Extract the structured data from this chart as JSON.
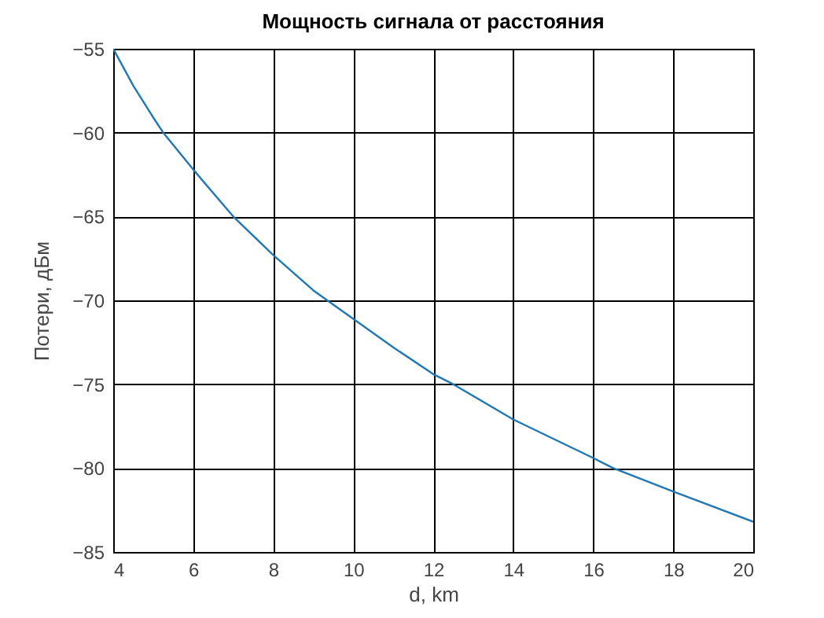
{
  "chart_data": {
    "type": "line",
    "title": "Мощность сигнала от расстояния",
    "xlabel": "d, km",
    "ylabel": "Потери, дБм",
    "x": [
      4,
      4.5,
      5,
      5.25,
      6,
      7,
      8,
      9,
      9.35,
      10,
      11,
      12,
      12.5,
      14,
      16,
      16.5,
      18,
      20
    ],
    "series": [
      {
        "color": "#1f77b4",
        "values": [
          -55,
          -57.2,
          -59.1,
          -60,
          -62.2,
          -65,
          -67.3,
          -69.4,
          -70,
          -71.1,
          -72.8,
          -74.4,
          -75,
          -77.1,
          -79.4,
          -80,
          -81.4,
          -83.2
        ]
      }
    ],
    "xlim": [
      4,
      20
    ],
    "xticks": [
      4,
      6,
      8,
      10,
      12,
      14,
      16,
      18,
      20
    ],
    "ylim": [
      -85,
      -55
    ],
    "yticks": [
      -85,
      -80,
      -75,
      -70,
      -65,
      -60,
      -55
    ],
    "grid": true
  }
}
